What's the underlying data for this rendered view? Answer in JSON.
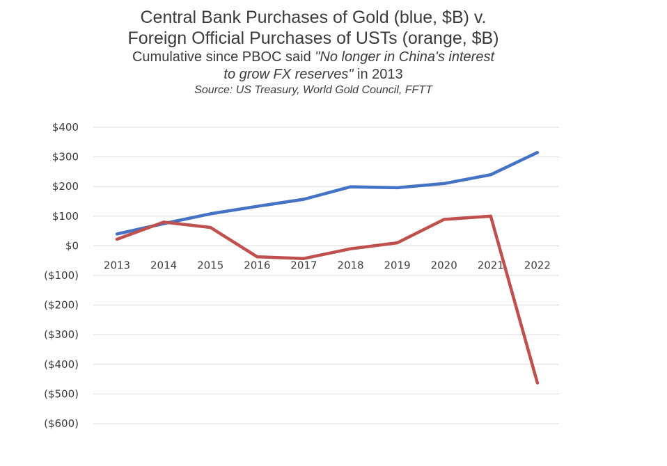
{
  "chart_data": {
    "type": "line",
    "title": "Central Bank Purchases of Gold (blue, $B) v. Foreign Official Purchases of USTs (orange, $B)",
    "title_lines": [
      "Central Bank Purchases of Gold (blue, $B) v.",
      "Foreign Official Purchases of USTs (orange, $B)"
    ],
    "subtitle": {
      "prefix": "Cumulative since PBOC said ",
      "quote_a": "\"No longer in China's interest",
      "quote_b": "to grow FX reserves\"",
      "suffix": " in 2013"
    },
    "source": "Source: US Treasury, World Gold Council, FFTT",
    "categories": [
      "2013",
      "2014",
      "2015",
      "2016",
      "2017",
      "2018",
      "2019",
      "2020",
      "2021",
      "2022"
    ],
    "y_ticks": [
      {
        "value": 400,
        "label": "$400"
      },
      {
        "value": 300,
        "label": "$300"
      },
      {
        "value": 200,
        "label": "$200"
      },
      {
        "value": 100,
        "label": "$100"
      },
      {
        "value": 0,
        "label": "$0"
      },
      {
        "value": -100,
        "label": "($100)"
      },
      {
        "value": -200,
        "label": "($200)"
      },
      {
        "value": -300,
        "label": "($300)"
      },
      {
        "value": -400,
        "label": "($400)"
      },
      {
        "value": -500,
        "label": "($500)"
      },
      {
        "value": -600,
        "label": "($600)"
      }
    ],
    "ylim": [
      -600,
      400
    ],
    "grid": true,
    "series": [
      {
        "name": "Central Bank Purchases of Gold",
        "color": "#4472c4",
        "values": [
          40,
          75,
          108,
          133,
          157,
          199,
          196,
          210,
          240,
          315
        ]
      },
      {
        "name": "Foreign Official Purchases of USTs",
        "color": "#c0504d",
        "values": [
          22,
          80,
          62,
          -37,
          -43,
          -10,
          10,
          89,
          100,
          -463
        ]
      }
    ]
  }
}
